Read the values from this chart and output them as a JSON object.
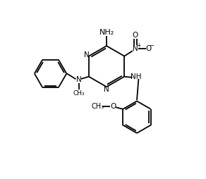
{
  "background": "#ffffff",
  "line_color": "#000000",
  "line_width": 1.3,
  "figsize": [
    2.92,
    2.54
  ],
  "dpi": 100,
  "xlim": [
    0,
    10
  ],
  "ylim": [
    0,
    10
  ]
}
